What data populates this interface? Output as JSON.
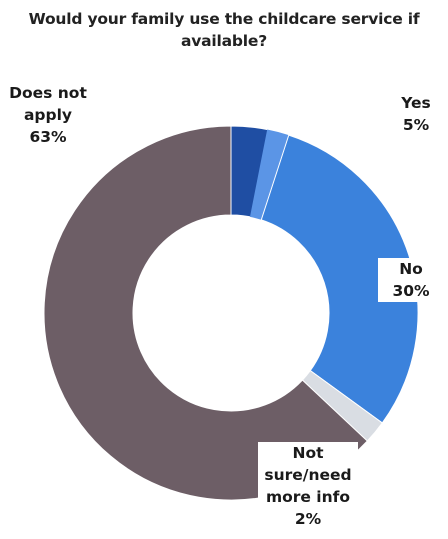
{
  "chart_data": {
    "type": "pie",
    "title_lines": [
      "Would your family use the childcare service if",
      "available?"
    ],
    "slices": [
      {
        "label_lines": [
          "Yes"
        ],
        "pct_label": "5%",
        "value": 5,
        "color": "#1f4ea3",
        "highlight": "#5b95e6"
      },
      {
        "label_lines": [
          "No"
        ],
        "pct_label": "30%",
        "value": 30,
        "color": "#3b82dc"
      },
      {
        "label_lines": [
          "Not",
          "sure/need",
          "more info"
        ],
        "pct_label": "2%",
        "value": 2,
        "color": "#d9dde3"
      },
      {
        "label_lines": [
          "Does not",
          "apply"
        ],
        "pct_label": "63%",
        "value": 63,
        "color": "#6d5e66"
      }
    ],
    "legend": "none",
    "donut": true
  }
}
